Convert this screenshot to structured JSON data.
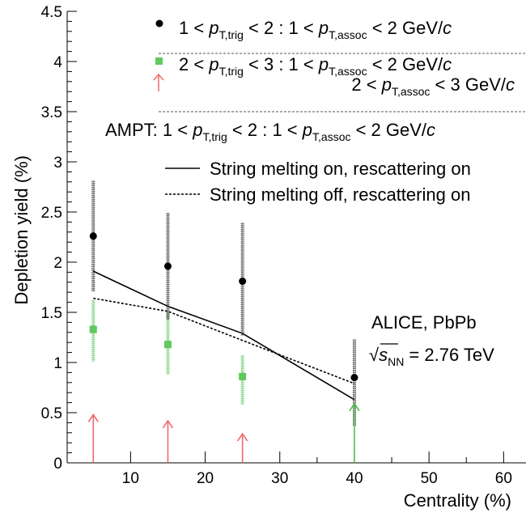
{
  "chart_data": {
    "type": "scatter",
    "xlabel": "Centrality (%)",
    "ylabel": "Depletion yield (%)",
    "xlim": [
      1.5,
      63
    ],
    "ylim": [
      0,
      4.5
    ],
    "x_ticks": [
      10,
      20,
      30,
      40,
      50,
      60
    ],
    "y_ticks": [
      0,
      0.5,
      1,
      1.5,
      2,
      2.5,
      3,
      3.5,
      4,
      4.5
    ],
    "x_tick_labels": [
      "10",
      "20",
      "30",
      "40",
      "50",
      "60"
    ],
    "y_tick_labels": [
      "0",
      "0.5",
      "1",
      "1.5",
      "2",
      "2.5",
      "3",
      "3.5",
      "4",
      "4.5"
    ],
    "grid": false,
    "legend_position": "top-right",
    "annotation": {
      "line1": "ALICE, PbPb",
      "sqrt": "√",
      "s": "s",
      "nn": "NN",
      "rest": " = 2.76 TeV"
    },
    "legend": {
      "entry1": {
        "pre": "1 < ",
        "p1": "p",
        "sub1": "T,trig",
        "mid": " < 2 : 1 < ",
        "p2": "p",
        "sub2": "T,assoc",
        "post": " < 2 GeV/",
        "c": "c"
      },
      "entry2": {
        "pre": "2 < ",
        "p1": "p",
        "sub1": "T,trig",
        "mid": " < 3 : 1 < ",
        "p2": "p",
        "sub2": "T,assoc",
        "post": " < 2 GeV/",
        "c": "c"
      },
      "entry3": {
        "pre": "2 < ",
        "p": "p",
        "sub": "T,assoc",
        "post": " < 3 GeV/",
        "c": "c"
      },
      "ampt": {
        "pre": "AMPT: 1 < ",
        "p1": "p",
        "sub1": "T,trig",
        "mid": " < 2 : 1 < ",
        "p2": "p",
        "sub2": "T,assoc",
        "post": " < 2 GeV/",
        "c": "c"
      },
      "solid": "String melting on, rescattering on",
      "dashed": "String melting off, rescattering on"
    },
    "colors": {
      "black": "#000000",
      "green": "#5fc85f",
      "red": "#f06a6a",
      "green_arrow": "#4cbf4c"
    },
    "series": [
      {
        "marker": "circle",
        "color": "#000000",
        "x": [
          5,
          15,
          25,
          40
        ],
        "y": [
          2.26,
          1.96,
          1.81,
          0.85
        ],
        "err_low": [
          1.71,
          1.43,
          1.27,
          0.37
        ],
        "err_high": [
          2.81,
          2.49,
          2.39,
          1.23
        ]
      },
      {
        "marker": "square",
        "color": "#5fc85f",
        "x": [
          5,
          15,
          25
        ],
        "y": [
          1.33,
          1.18,
          0.86
        ],
        "err_low": [
          1.01,
          0.88,
          0.58
        ],
        "err_high": [
          1.62,
          1.49,
          1.07
        ]
      },
      {
        "marker": "arrow-up",
        "color": "#f06a6a",
        "x": [
          5,
          15,
          25
        ],
        "y": [
          0.48,
          0.42,
          0.29
        ]
      },
      {
        "marker": "arrow-up",
        "color": "#4cbf4c",
        "x": [
          40
        ],
        "y": [
          0.59
        ]
      },
      {
        "line": "solid",
        "color": "#000000",
        "x": [
          5,
          15,
          25,
          40
        ],
        "y": [
          1.91,
          1.56,
          1.29,
          0.63
        ]
      },
      {
        "line": "dashed",
        "color": "#000000",
        "x": [
          5,
          15,
          25,
          40
        ],
        "y": [
          1.64,
          1.51,
          1.22,
          0.79
        ]
      }
    ]
  }
}
